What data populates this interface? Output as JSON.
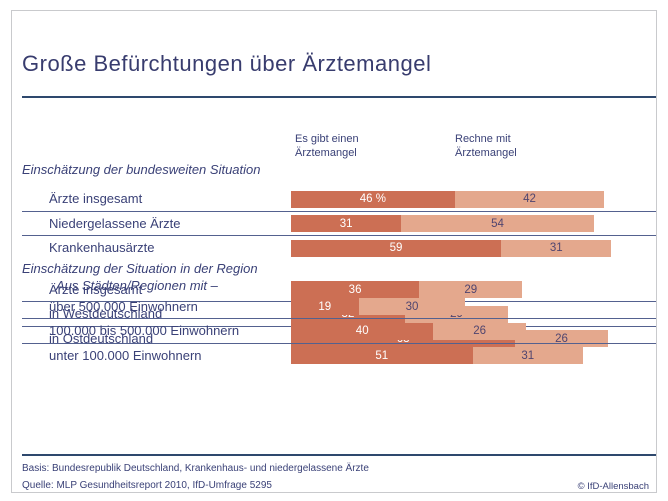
{
  "page": {
    "title": "Große Befürchtungen über Ärztemangel",
    "footer": {
      "basis": "Basis: Bundesrepublik Deutschland, Krankenhaus- und niedergelassene Ärzte",
      "quelle": "Quelle: MLP Gesundheitsreport 2010, IfD-Umfrage 5295",
      "copyright": "© IfD-Allensbach"
    }
  },
  "colors": {
    "text_navy": "#3a4177",
    "rule_navy": "#2e486d",
    "bar_dark": "#cc6f54",
    "bar_light": "#e4a88d",
    "value_on_dark": "#ffffff",
    "value_on_light": "#50456f",
    "frame_border": "#c9cacd"
  },
  "chart_data": {
    "type": "bar",
    "orientation": "horizontal",
    "stacked": true,
    "unit": "percent",
    "axis_max": 100,
    "grid": "row-separator-lines",
    "legend_position": "top",
    "title": "Große Befürchtungen über Ärztemangel",
    "legend": [
      {
        "label": "Es gibt einen Ärztemangel",
        "color": "#cc6f54"
      },
      {
        "label": "Rechne mit Ärztemangel",
        "color": "#e4a88d"
      }
    ],
    "groups": [
      {
        "header": "Einschätzung der bundesweiten Situation",
        "header_indent": false,
        "rows": [
          {
            "label": "Ärzte insgesamt",
            "values": [
              46,
              42
            ],
            "value_labels": [
              "46 %",
              "42"
            ]
          },
          {
            "label": "Niedergelassene Ärzte",
            "values": [
              31,
              54
            ],
            "value_labels": [
              "31",
              "54"
            ]
          },
          {
            "label": "Krankenhausärzte",
            "values": [
              59,
              31
            ],
            "value_labels": [
              "59",
              "31"
            ]
          }
        ]
      },
      {
        "header": "Einschätzung der Situation in der Region",
        "header_indent": false,
        "rows": [
          {
            "label": "Ärzte insgesamt",
            "values": [
              36,
              29
            ],
            "value_labels": [
              "36",
              "29"
            ]
          },
          {
            "label": "in Westdeutschland",
            "values": [
              32,
              29
            ],
            "value_labels": [
              "32",
              "29"
            ]
          },
          {
            "label": "in Ostdeutschland",
            "values": [
              63,
              26
            ],
            "value_labels": [
              "63",
              "26"
            ]
          }
        ]
      },
      {
        "header": "Aus Städten/Regionen mit –",
        "header_indent": true,
        "rows": [
          {
            "label": "über 500.000 Einwohnern",
            "values": [
              19,
              30
            ],
            "value_labels": [
              "19",
              "30"
            ]
          },
          {
            "label": "100.000 bis 500.000 Einwohnern",
            "values": [
              40,
              26
            ],
            "value_labels": [
              "40",
              "26"
            ]
          },
          {
            "label": "unter 100.000 Einwohnern",
            "values": [
              51,
              31
            ],
            "value_labels": [
              "51",
              "31"
            ]
          }
        ]
      }
    ]
  }
}
